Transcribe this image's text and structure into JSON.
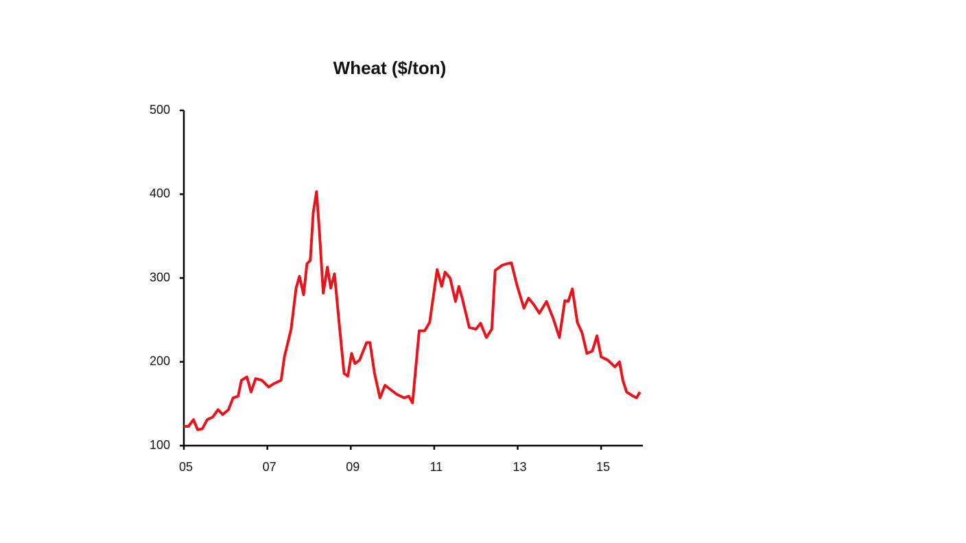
{
  "chart_data": {
    "type": "line",
    "title": "Wheat ($/ton)",
    "x": [
      2005.0,
      2005.11,
      2005.23,
      2005.33,
      2005.44,
      2005.56,
      2005.69,
      2005.82,
      2005.93,
      2006.07,
      2006.18,
      2006.3,
      2006.38,
      2006.51,
      2006.61,
      2006.72,
      2006.87,
      2007.03,
      2007.16,
      2007.33,
      2007.41,
      2007.57,
      2007.69,
      2007.77,
      2007.87,
      2007.95,
      2008.03,
      2008.1,
      2008.18,
      2008.25,
      2008.34,
      2008.44,
      2008.52,
      2008.61,
      2008.72,
      2008.84,
      2008.93,
      2009.02,
      2009.1,
      2009.21,
      2009.38,
      2009.46,
      2009.57,
      2009.7,
      2009.82,
      2009.95,
      2010.11,
      2010.28,
      2010.39,
      2010.48,
      2010.64,
      2010.77,
      2010.89,
      2011.07,
      2011.18,
      2011.26,
      2011.38,
      2011.51,
      2011.59,
      2011.67,
      2011.84,
      2012.0,
      2012.11,
      2012.25,
      2012.38,
      2012.46,
      2012.62,
      2012.74,
      2012.85,
      2012.98,
      2013.15,
      2013.26,
      2013.39,
      2013.52,
      2013.69,
      2013.85,
      2014.0,
      2014.13,
      2014.21,
      2014.31,
      2014.43,
      2014.54,
      2014.66,
      2014.79,
      2014.9,
      2015.0,
      2015.16,
      2015.33,
      2015.44,
      2015.52,
      2015.61,
      2015.77,
      2015.85,
      2015.93
    ],
    "values": [
      123,
      123,
      131,
      119,
      120,
      131,
      134,
      143,
      137,
      143,
      157,
      159,
      178,
      182,
      164,
      180,
      178,
      170,
      174,
      178,
      206,
      239,
      288,
      302,
      280,
      317,
      321,
      378,
      403,
      354,
      282,
      313,
      288,
      305,
      247,
      186,
      183,
      210,
      198,
      202,
      223,
      223,
      186,
      157,
      172,
      167,
      161,
      157,
      159,
      151,
      237,
      237,
      247,
      310,
      290,
      307,
      300,
      272,
      290,
      276,
      241,
      239,
      246,
      229,
      239,
      309,
      315,
      317,
      318,
      292,
      264,
      276,
      268,
      258,
      272,
      252,
      229,
      273,
      272,
      287,
      247,
      235,
      210,
      213,
      231,
      206,
      202,
      194,
      200,
      178,
      164,
      159,
      157,
      164
    ],
    "color": "#e8141c",
    "xlim": [
      2005,
      2016
    ],
    "xticks": [
      {
        "value": 2005,
        "label": "05"
      },
      {
        "value": 2007,
        "label": "07"
      },
      {
        "value": 2009,
        "label": "09"
      },
      {
        "value": 2011,
        "label": "11"
      },
      {
        "value": 2013,
        "label": "13"
      },
      {
        "value": 2015,
        "label": "15"
      }
    ],
    "ylim": [
      100,
      500
    ],
    "yticks": [
      100,
      200,
      300,
      400,
      500
    ],
    "grid": false
  }
}
